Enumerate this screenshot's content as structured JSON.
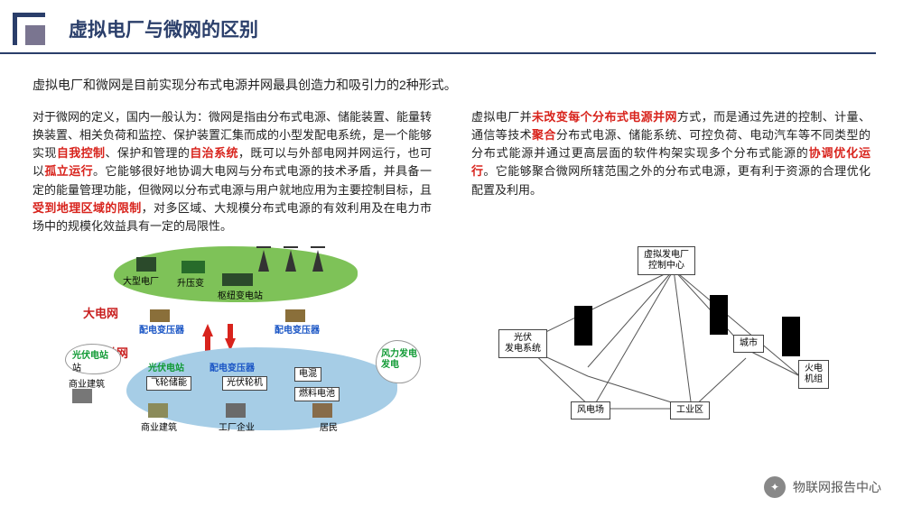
{
  "title": "虚拟电厂与微网的区别",
  "intro": "虚拟电厂和微网是目前实现分布式电源并网最具创造力和吸引力的2种形式。",
  "left": {
    "p1": "对于微网的定义，国内一般认为：微网是指由分布式电源、储能装置、能量转换装置、相关负荷和监控、保护装置汇集而成的小型发配电系统，是一个能够实现",
    "hl1": "自我控制",
    "p2": "、保护和管理的",
    "hl2": "自治系统",
    "p3": "，既可以与外部电网并网运行，也可以",
    "hl3": "孤立运行",
    "p4": "。它能够很好地协调大电网与分布式电源的技术矛盾，并具备一定的能量管理功能，但微网以分布式电源与用户就地应用为主要控制目标，且",
    "hl4": "受到地理区域的限制",
    "p5": "，对多区域、大规模分布式电源的有效利用及在电力市场中的规模化效益具有一定的局限性。"
  },
  "right": {
    "p1": "虚拟电厂并",
    "hl1": "未改变每个分布式电源并网",
    "p2": "方式，而是通过先进的控制、计量、通信等技术",
    "hl2": "聚合",
    "p3": "分布式电源、储能系统、可控负荷、电动汽车等不同类型的分布式能源并通过更高层面的软件构架实现多个分布式能源的",
    "hl3": "协调优化运行",
    "p4": "。它能够聚合微网所辖范围之外的分布式电源，更有利于资源的合理优化配置及利用。"
  },
  "micro": {
    "bignet": "大电网",
    "microgrid": "微网",
    "n1": "大型电厂",
    "n2": "升压变",
    "n3": "枢纽变电站",
    "n4": "配电变压器",
    "n5": "配电变压器",
    "n6": "光伏电站",
    "n7": "商业建筑",
    "n8": "光伏电站",
    "n9": "飞轮储能",
    "n10": "商业建筑",
    "n11": "配电变压器",
    "n12": "光伏轮机",
    "n13": "工厂企业",
    "n14": "燃料电池",
    "n15": "居民",
    "n16": "风力发电",
    "n_pow": "电混"
  },
  "vpp": {
    "center": "虚拟发电厂\n控制中心",
    "n1": "光伏\n发电系统",
    "n2": "风电场",
    "n3": "工业区",
    "n4": "城市",
    "n5": "火电\n机组"
  },
  "footer": "物联网报告中心",
  "colors": {
    "title": "#2a3e6a",
    "red": "#d8231c",
    "green_blob": "#7ec258",
    "blue_blob": "#a6cde6"
  }
}
